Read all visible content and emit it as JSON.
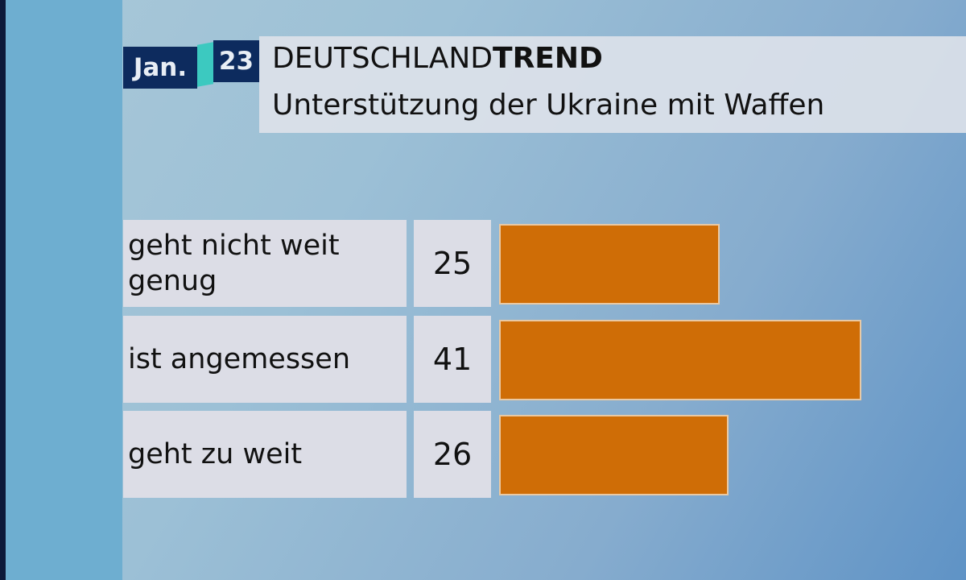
{
  "header": {
    "month": "Jan.",
    "year": "23",
    "brand_light": "DEUTSCHLAND",
    "brand_bold": "TREND",
    "title": "Unterstützung der Ukraine mit Waffen"
  },
  "colors": {
    "bar": "#cf6d06",
    "header_box": "#0d2b5e",
    "accent": "#3cc9c0"
  },
  "chart_data": {
    "type": "bar",
    "orientation": "horizontal",
    "title": "Unterstützung der Ukraine mit Waffen",
    "categories": [
      "geht nicht weit genug",
      "ist angemessen",
      "geht zu weit"
    ],
    "values": [
      25,
      41,
      26
    ],
    "grid": false
  }
}
